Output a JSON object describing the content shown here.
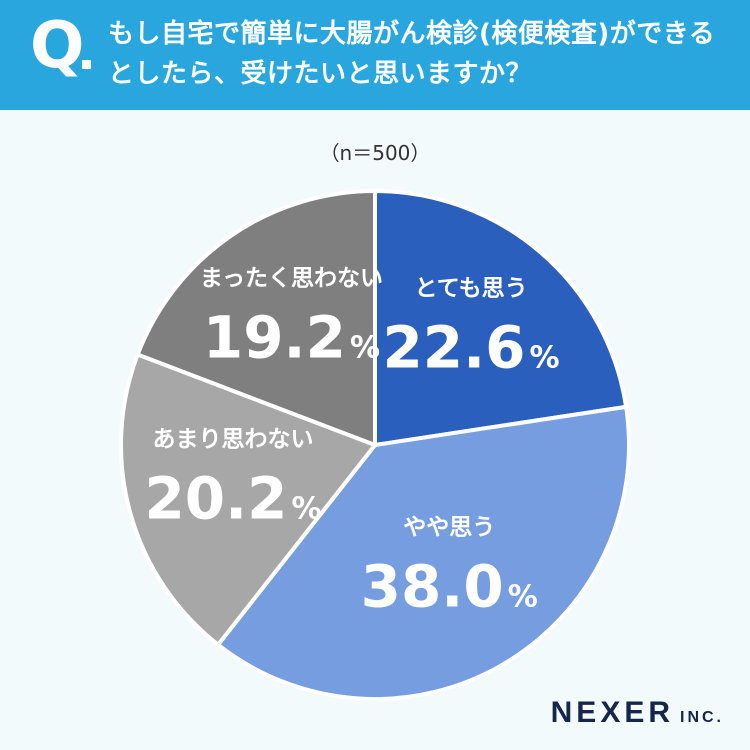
{
  "header": {
    "q_mark": "Q",
    "question": "もし自宅で簡単に大腸がん検診(検便検査)ができるとしたら、受けたいと思いますか？"
  },
  "chart_data": {
    "type": "pie",
    "sample_note": "（n＝500）",
    "start_angle_deg": 0,
    "direction": "clockwise",
    "unit": "%",
    "slices": [
      {
        "label": "とても思う",
        "value": 22.6,
        "display": "22.6",
        "color": "#2a5fbd",
        "text_color": "#ffffff"
      },
      {
        "label": "やや思う",
        "value": 38.0,
        "display": "38.0",
        "color": "#759ddf",
        "text_color": "#ffffff"
      },
      {
        "label": "あまり思わない",
        "value": 20.2,
        "display": "20.2",
        "color": "#a7a7a7",
        "text_color": "#ffffff"
      },
      {
        "label": "まったく思わない",
        "value": 19.2,
        "display": "19.2",
        "color": "#7f7f7f",
        "text_color": "#ffffff"
      }
    ]
  },
  "brand": {
    "name": "NEXER",
    "suffix": "INC."
  }
}
